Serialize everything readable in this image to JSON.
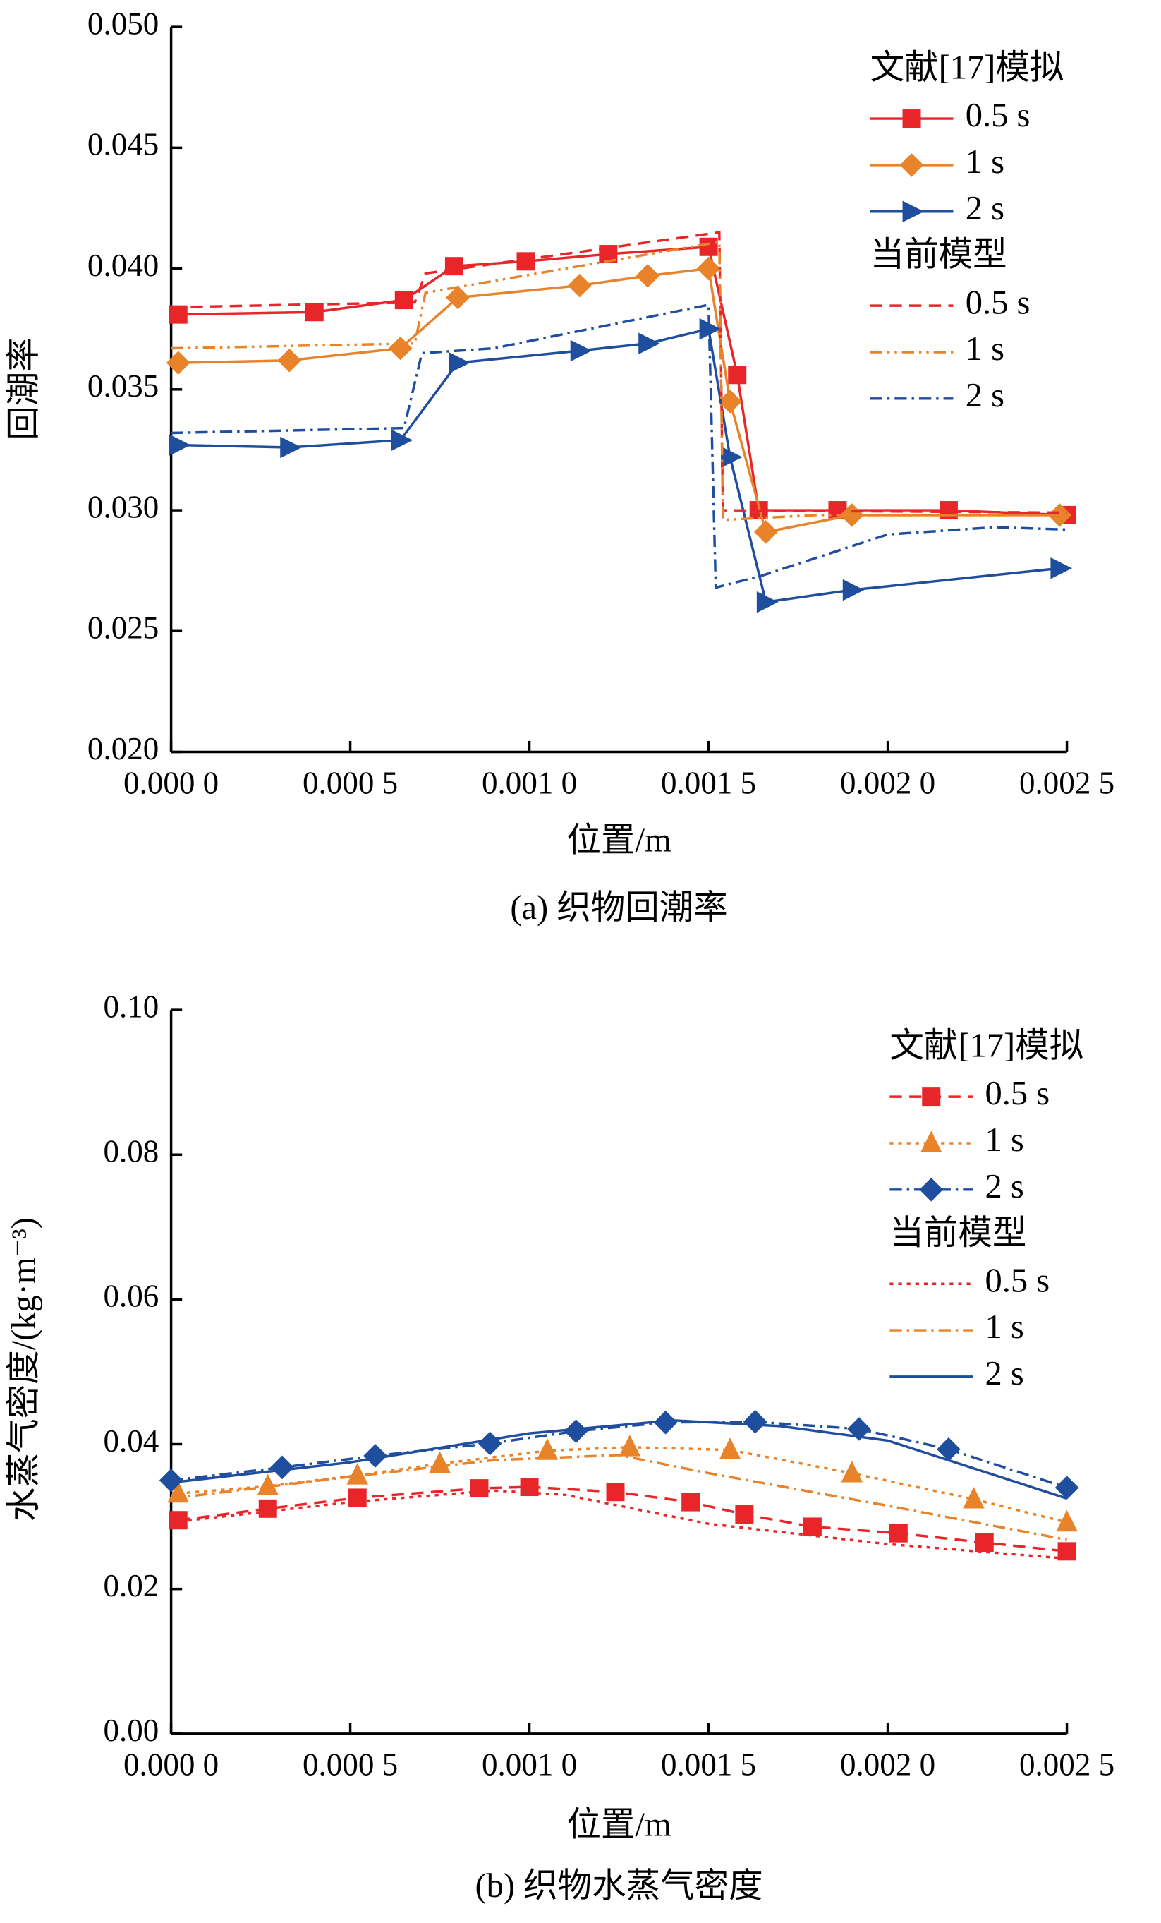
{
  "chart_data": [
    {
      "type": "line",
      "title": "(a) 织物回潮率",
      "x_label": "位置/m",
      "y_label": "回潮率",
      "xlim": [
        0,
        0.0025
      ],
      "ylim": [
        0.02,
        0.05
      ],
      "xticks": [
        {
          "value": 0,
          "label": "0.000 0"
        },
        {
          "value": 0.0005,
          "label": "0.000 5"
        },
        {
          "value": 0.001,
          "label": "0.001 0"
        },
        {
          "value": 0.0015,
          "label": "0.001 5"
        },
        {
          "value": 0.002,
          "label": "0.002 0"
        },
        {
          "value": 0.0025,
          "label": "0.002 5"
        }
      ],
      "yticks": [
        {
          "value": 0.02,
          "label": "0.020"
        },
        {
          "value": 0.025,
          "label": "0.025"
        },
        {
          "value": 0.03,
          "label": "0.030"
        },
        {
          "value": 0.035,
          "label": "0.035"
        },
        {
          "value": 0.04,
          "label": "0.040"
        },
        {
          "value": 0.045,
          "label": "0.045"
        },
        {
          "value": 0.05,
          "label": "0.050"
        }
      ],
      "groups": [
        {
          "title": "文献[17]模拟",
          "series": [
            {
              "name": "0.5 s",
              "color": "#e8262a",
              "dash": "solid",
              "marker": "square",
              "x": [
                2e-05,
                0.0004,
                0.00065,
                0.00079,
                0.00099,
                0.00122,
                0.0015,
                0.00158,
                0.00164,
                0.00186,
                0.00217,
                0.0025
              ],
              "values": [
                0.0381,
                0.0382,
                0.0387,
                0.0401,
                0.0403,
                0.0406,
                0.0409,
                0.0356,
                0.03,
                0.03,
                0.03,
                0.0298
              ]
            },
            {
              "name": "1 s",
              "color": "#e8832a",
              "dash": "solid",
              "marker": "diamond",
              "x": [
                2e-05,
                0.00033,
                0.00064,
                0.0008,
                0.00114,
                0.00133,
                0.0015,
                0.00156,
                0.00166,
                0.0019,
                0.00248
              ],
              "values": [
                0.0361,
                0.0362,
                0.0367,
                0.0388,
                0.0393,
                0.0397,
                0.04,
                0.0345,
                0.0291,
                0.0298,
                0.0298
              ]
            },
            {
              "name": "2 s",
              "color": "#1f4e9e",
              "dash": "solid",
              "marker": "triangle-right",
              "x": [
                2e-05,
                0.00033,
                0.00064,
                0.0008,
                0.00114,
                0.00133,
                0.0015,
                0.00156,
                0.00166,
                0.0019,
                0.00248
              ],
              "values": [
                0.0327,
                0.0326,
                0.0329,
                0.0361,
                0.0366,
                0.0369,
                0.0375,
                0.0322,
                0.0262,
                0.0267,
                0.0276
              ]
            }
          ]
        },
        {
          "title": "当前模型",
          "series": [
            {
              "name": "0.5 s",
              "color": "#e8262a",
              "dash": "dashed",
              "marker": "none",
              "x": [
                0,
                0.00068,
                0.00071,
                0.00153,
                0.00154,
                0.0025
              ],
              "values": [
                0.0384,
                0.0386,
                0.0398,
                0.0415,
                0.03,
                0.0299
              ]
            },
            {
              "name": "1 s",
              "color": "#e8832a",
              "dash": "dash-dot-dot",
              "marker": "none",
              "x": [
                0,
                0.00068,
                0.00071,
                0.00153,
                0.00154,
                0.0018,
                0.0025
              ],
              "values": [
                0.0367,
                0.0369,
                0.039,
                0.0411,
                0.0296,
                0.0298,
                0.0298
              ]
            },
            {
              "name": "2 s",
              "color": "#1f4e9e",
              "dash": "dash-dot",
              "marker": "none",
              "x": [
                0,
                0.00065,
                0.0007,
                0.0009,
                0.0015,
                0.00152,
                0.00165,
                0.002,
                0.0023,
                0.0025
              ],
              "values": [
                0.0332,
                0.0334,
                0.0365,
                0.0367,
                0.0385,
                0.0268,
                0.0273,
                0.029,
                0.0293,
                0.0292
              ]
            }
          ]
        }
      ]
    },
    {
      "type": "line",
      "title": "(b) 织物水蒸气密度",
      "x_label": "位置/m",
      "y_label": "水蒸气密度/(kg·m⁻³)",
      "xlim": [
        0,
        0.0025
      ],
      "ylim": [
        0,
        0.1
      ],
      "xticks": [
        {
          "value": 0,
          "label": "0.000 0"
        },
        {
          "value": 0.0005,
          "label": "0.000 5"
        },
        {
          "value": 0.001,
          "label": "0.001 0"
        },
        {
          "value": 0.0015,
          "label": "0.001 5"
        },
        {
          "value": 0.002,
          "label": "0.002 0"
        },
        {
          "value": 0.0025,
          "label": "0.002 5"
        }
      ],
      "yticks": [
        {
          "value": 0,
          "label": "0.00"
        },
        {
          "value": 0.02,
          "label": "0.02"
        },
        {
          "value": 0.04,
          "label": "0.04"
        },
        {
          "value": 0.06,
          "label": "0.06"
        },
        {
          "value": 0.08,
          "label": "0.08"
        },
        {
          "value": 0.1,
          "label": "0.10"
        }
      ],
      "groups": [
        {
          "title": "文献[17]模拟",
          "series": [
            {
              "name": "0.5 s",
              "color": "#e8262a",
              "dash": "dashed",
              "marker": "square",
              "x": [
                2e-05,
                0.00027,
                0.00052,
                0.00086,
                0.001,
                0.00124,
                0.00145,
                0.0016,
                0.00179,
                0.00203,
                0.00227,
                0.0025
              ],
              "values": [
                0.0295,
                0.0311,
                0.0326,
                0.0339,
                0.0341,
                0.0334,
                0.032,
                0.0303,
                0.0286,
                0.0277,
                0.0264,
                0.0252
              ]
            },
            {
              "name": "1 s",
              "color": "#e8832a",
              "dash": "dotted",
              "marker": "triangle-up",
              "x": [
                2e-05,
                0.00027,
                0.00052,
                0.00075,
                0.00105,
                0.00128,
                0.00156,
                0.0019,
                0.00224,
                0.0025
              ],
              "values": [
                0.0332,
                0.0342,
                0.0357,
                0.0373,
                0.0391,
                0.0396,
                0.0392,
                0.036,
                0.0324,
                0.0292
              ]
            },
            {
              "name": "2 s",
              "color": "#1f4e9e",
              "dash": "dash-dot",
              "marker": "diamond",
              "x": [
                0,
                0.00031,
                0.00057,
                0.00089,
                0.00113,
                0.00138,
                0.00163,
                0.00192,
                0.00217,
                0.0025
              ],
              "values": [
                0.035,
                0.0368,
                0.0384,
                0.0401,
                0.0418,
                0.043,
                0.0431,
                0.0421,
                0.0393,
                0.034
              ]
            }
          ]
        },
        {
          "title": "当前模型",
          "series": [
            {
              "name": "0.5 s",
              "color": "#e8262a",
              "dash": "dotted",
              "marker": "none",
              "x": [
                0,
                0.0005,
                0.0009,
                0.0011,
                0.0015,
                0.002,
                0.0025
              ],
              "values": [
                0.0292,
                0.032,
                0.0336,
                0.033,
                0.029,
                0.0262,
                0.0242
              ]
            },
            {
              "name": "1 s",
              "color": "#e8832a",
              "dash": "dash-dot",
              "marker": "none",
              "x": [
                0,
                0.0005,
                0.0009,
                0.00125,
                0.0015,
                0.002,
                0.0025
              ],
              "values": [
                0.0325,
                0.0355,
                0.0378,
                0.0385,
                0.036,
                0.0315,
                0.0268
              ]
            },
            {
              "name": "2 s",
              "color": "#1f4e9e",
              "dash": "solid",
              "marker": "none",
              "x": [
                0,
                0.0005,
                0.001,
                0.0014,
                0.0017,
                0.002,
                0.0025
              ],
              "values": [
                0.0347,
                0.0375,
                0.0415,
                0.0433,
                0.0425,
                0.0405,
                0.0325
              ]
            }
          ]
        }
      ]
    }
  ]
}
